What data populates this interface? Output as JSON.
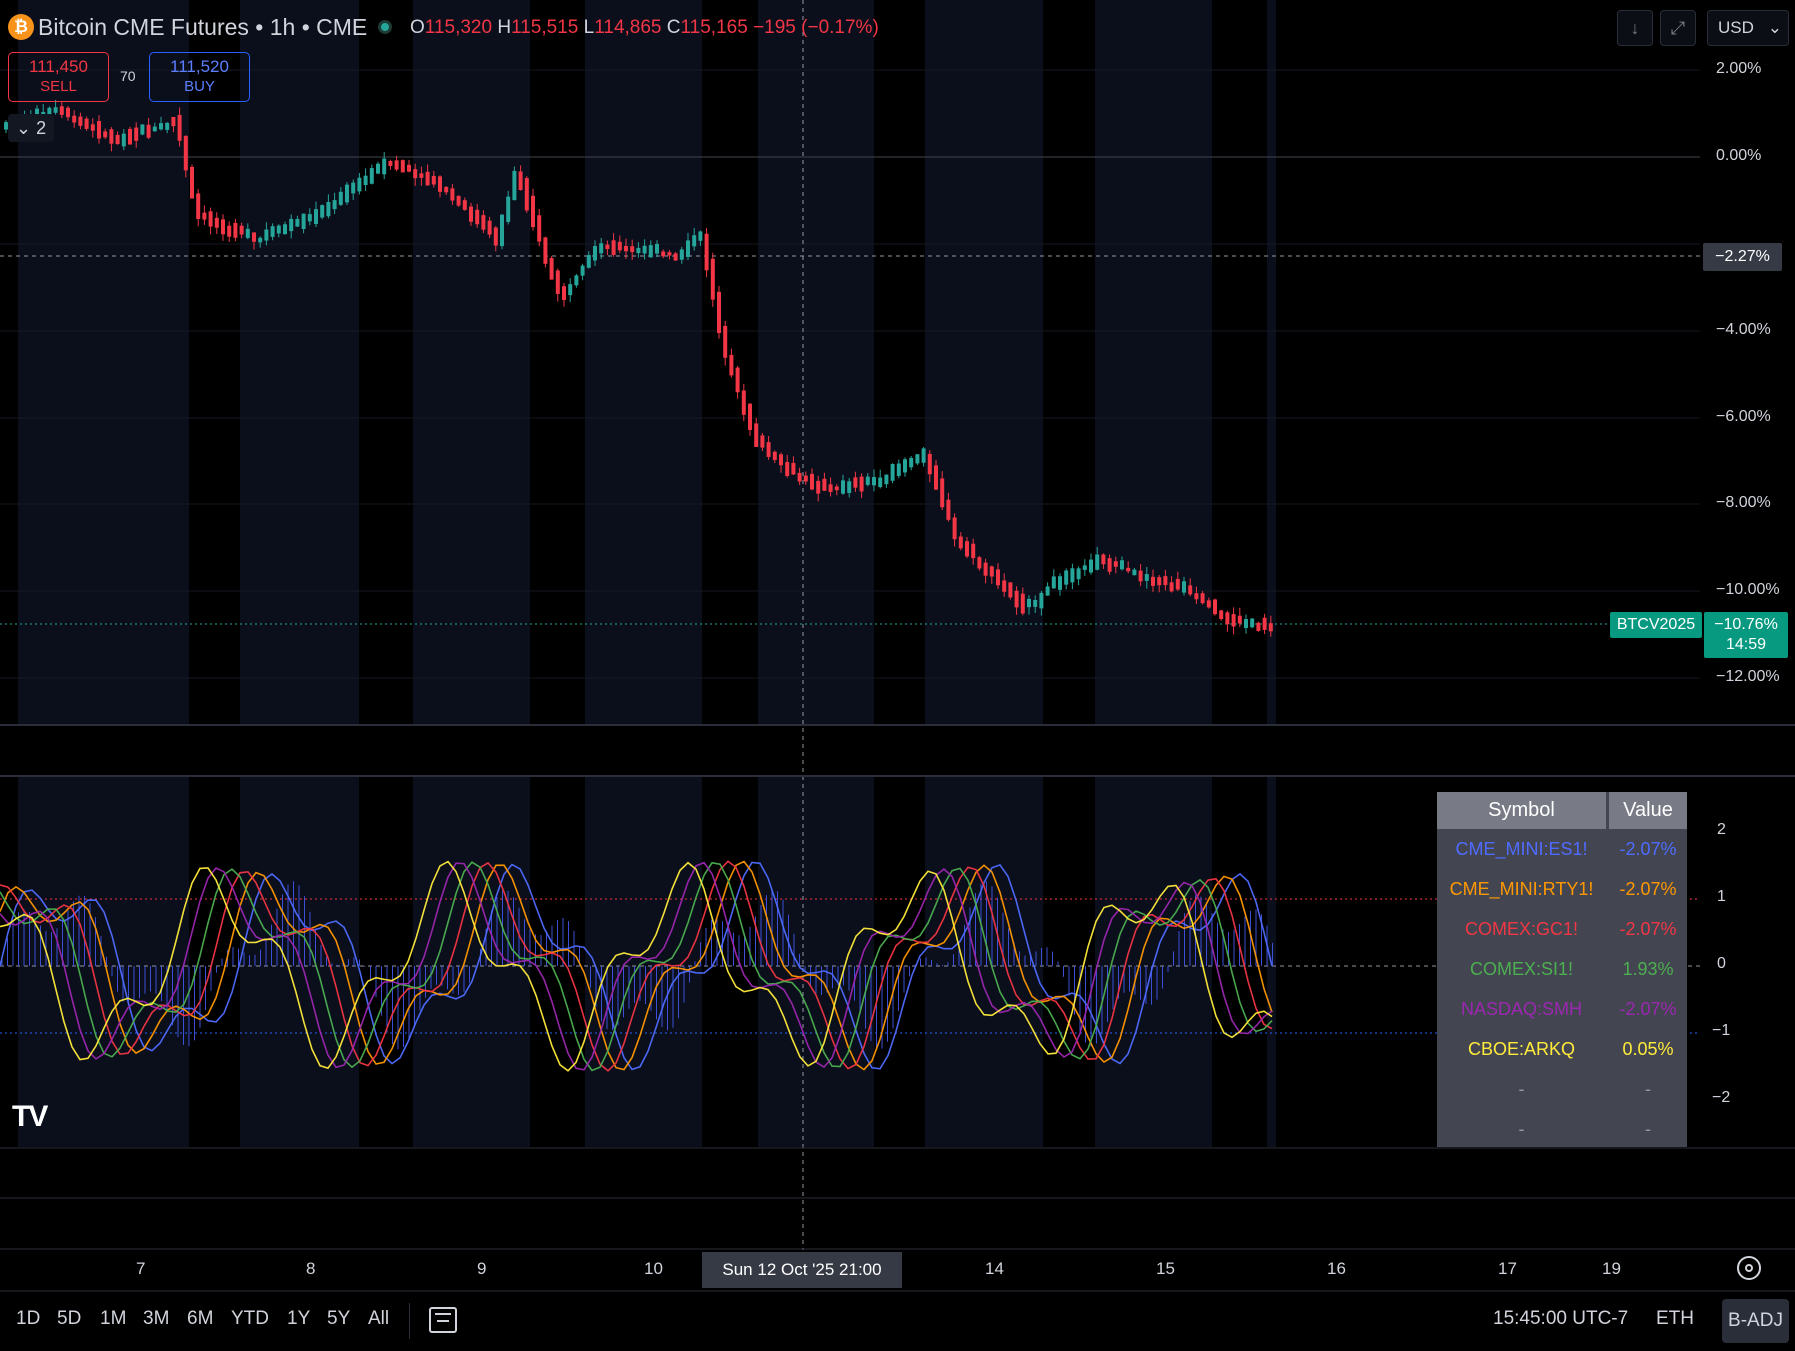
{
  "header": {
    "symbol_title": "Bitcoin CME Futures • 1h • CME",
    "ohlc": {
      "o_label": "O",
      "o": "115,320",
      "h_label": "H",
      "h": "115,515",
      "l_label": "L",
      "l": "114,865",
      "c_label": "C",
      "c": "115,165",
      "change": "−195 (−0.17%)"
    },
    "sell_price": "111,450",
    "sell_label": "SELL",
    "spread": "70",
    "buy_price": "111,520",
    "buy_label": "BUY",
    "collapse_count": "2",
    "currency": "USD",
    "download_icon": "↓",
    "fullscreen_icon": "⤢"
  },
  "price_axis": {
    "labels": [
      "2.00%",
      "0.00%",
      "−4.00%",
      "−6.00%",
      "−8.00%",
      "−10.00%",
      "−12.00%"
    ],
    "crosshair_value": "−2.27%",
    "symbol_tag": "BTCV2025",
    "last_value": "−10.76%",
    "countdown": "14:59"
  },
  "osc_axis": {
    "labels": [
      "2",
      "1",
      "0",
      "−1",
      "−2"
    ]
  },
  "table": {
    "headers": [
      "Symbol",
      "Value"
    ],
    "rows": [
      {
        "symbol": "CME_MINI:ES1!",
        "value": "-2.07%",
        "color": "#4f6bff"
      },
      {
        "symbol": "CME_MINI:RTY1!",
        "value": "-2.07%",
        "color": "#ff9800"
      },
      {
        "symbol": "COMEX:GC1!",
        "value": "-2.07%",
        "color": "#f23645"
      },
      {
        "symbol": "COMEX:SI1!",
        "value": "1.93%",
        "color": "#4caf50"
      },
      {
        "symbol": "NASDAQ:SMH",
        "value": "-2.07%",
        "color": "#9c27b0"
      },
      {
        "symbol": "CBOE:ARKQ",
        "value": "0.05%",
        "color": "#ffeb3b"
      },
      {
        "symbol": "-",
        "value": "-",
        "color": "#9598a1"
      },
      {
        "symbol": "-",
        "value": "-",
        "color": "#9598a1"
      }
    ]
  },
  "time_axis": {
    "labels": [
      "7",
      "8",
      "9",
      "10",
      "14",
      "15",
      "16",
      "17",
      "19"
    ],
    "crosshair_label": "Sun 12 Oct '25   21:00"
  },
  "bottom_bar": {
    "ranges": [
      "1D",
      "5D",
      "1M",
      "3M",
      "6M",
      "YTD",
      "1Y",
      "5Y",
      "All"
    ],
    "time": "15:45:00 UTC-7",
    "session": "ETH",
    "adjust": "B-ADJ"
  },
  "colors": {
    "up": "#26a69a",
    "down": "#f23645",
    "background": "#000000",
    "session_band": "#0b0f1c"
  },
  "icons": [
    "bitcoin-icon",
    "status-dot-icon",
    "download-icon",
    "fullscreen-icon",
    "chevron-down-icon",
    "calendar-goto-icon",
    "settings-gear-icon",
    "tradingview-logo-icon"
  ]
}
